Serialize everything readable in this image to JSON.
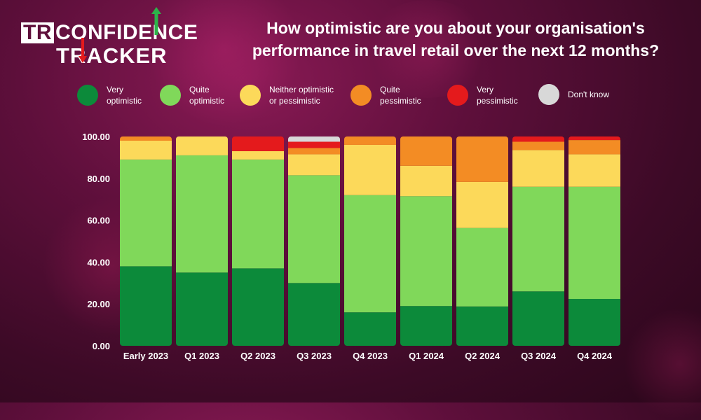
{
  "logo": {
    "tr": "TR",
    "line1": "CONFIDENCE",
    "line2": "TRACKER"
  },
  "colors": {
    "very_optimistic": "#0c8a3a",
    "quite_optimistic": "#80d85a",
    "neither": "#fcd95a",
    "quite_pessimistic": "#f38c24",
    "very_pessimistic": "#e41a1c",
    "dont_know": "#d8d8d8",
    "arrow_green": "#2db34a",
    "arrow_red": "#e41a1c"
  },
  "legend": [
    {
      "label": "Very\noptimistic",
      "color": "#0c8a3a"
    },
    {
      "label": "Quite\noptimistic",
      "color": "#80d85a"
    },
    {
      "label": "Neither optimistic\nor pessimistic",
      "color": "#fcd95a"
    },
    {
      "label": "Quite\npessimistic",
      "color": "#f38c24"
    },
    {
      "label": "Very\npessimistic",
      "color": "#e41a1c"
    },
    {
      "label": "Don't know",
      "color": "#d8d8d8"
    }
  ],
  "chart_data": {
    "type": "bar",
    "stacked": true,
    "title": "How optimistic are you about your organisation's performance in travel retail over the next 12 months?",
    "xlabel": "",
    "ylabel": "",
    "ylim": [
      0,
      100
    ],
    "yticks": [
      "0.00",
      "20.00",
      "40.00",
      "60.00",
      "80.00",
      "100.00"
    ],
    "categories": [
      "Early 2023",
      "Q1 2023",
      "Q2 2023",
      "Q3 2023",
      "Q4 2023",
      "Q1 2024",
      "Q2 2024",
      "Q3 2024",
      "Q4 2024"
    ],
    "series": [
      {
        "name": "Very optimistic",
        "color": "#0c8a3a",
        "values": [
          38,
          35,
          37,
          30,
          16,
          19,
          18.8,
          26,
          22.4
        ]
      },
      {
        "name": "Quite optimistic",
        "color": "#80d85a",
        "values": [
          51,
          56,
          52,
          51.5,
          56,
          52.5,
          37.5,
          50,
          53.6
        ]
      },
      {
        "name": "Neither optimistic or pessimistic",
        "color": "#fcd95a",
        "values": [
          9,
          9,
          4,
          10,
          24,
          14.5,
          22,
          17.5,
          15.5
        ]
      },
      {
        "name": "Quite pessimistic",
        "color": "#f38c24",
        "values": [
          2,
          0,
          0,
          3,
          4,
          14,
          21.7,
          4,
          6.8
        ]
      },
      {
        "name": "Very pessimistic",
        "color": "#e41a1c",
        "values": [
          0,
          0,
          7,
          3,
          0,
          0,
          0,
          2.5,
          1.7
        ]
      },
      {
        "name": "Don't know",
        "color": "#d8d8d8",
        "values": [
          0,
          0,
          0,
          2.5,
          0,
          0,
          0,
          0,
          0
        ]
      }
    ]
  }
}
